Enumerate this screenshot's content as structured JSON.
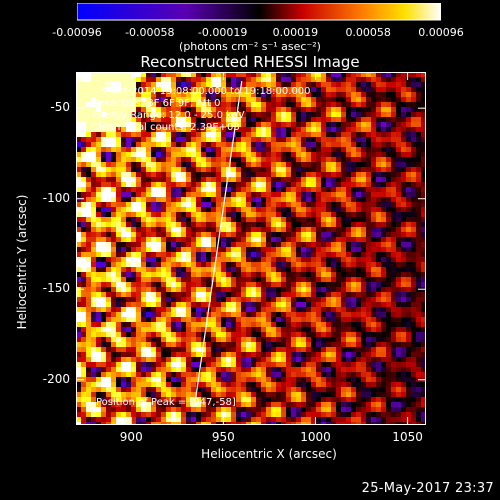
{
  "chart_data": {
    "type": "heatmap",
    "title": "Reconstructed RHESSI Image",
    "xlabel": "Heliocentric X (arcsec)",
    "ylabel": "Heliocentric Y (arcsec)",
    "xlim": [
      870,
      1060
    ],
    "ylim": [
      -225,
      -30
    ],
    "x_ticks": [
      900,
      950,
      1000,
      1050
    ],
    "y_ticks": [
      -50,
      -100,
      -150,
      -200
    ],
    "colorbar": {
      "ticks": [
        "-0.00096",
        "-0.00058",
        "-0.00019",
        "0.00019",
        "0.00058",
        "0.00096"
      ],
      "label": "(photons cm⁻² s⁻¹ asec⁻²)",
      "range": [
        -0.00096,
        0.00096
      ],
      "colors": [
        "#0000ff",
        "#6a00c8",
        "#000000",
        "#c80000",
        "#ff8000",
        "#ffff00",
        "#ffffff"
      ]
    },
    "annotations": [
      "3-Oct-2014 19:08:00.000 to 19:18:00.000",
      "Detectors: 3F 6F 9F, Att 0",
      "Energy Range: 12.0 - 25.0 keV",
      "Clean   Total counts: 2.39E+03"
    ],
    "peak_label": "Position of Peak = [947,-58]",
    "limb_line": [
      [
        935,
        -210
      ],
      [
        960,
        -35
      ]
    ]
  },
  "footer": {
    "date": "25-May-2017 23:37"
  }
}
